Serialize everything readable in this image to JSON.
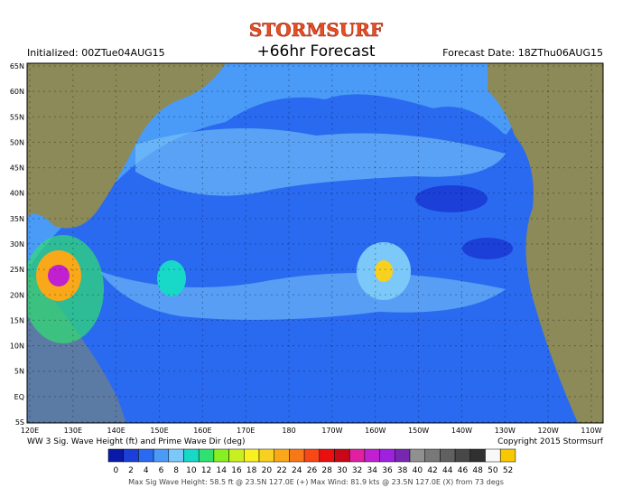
{
  "header": {
    "brand": "STORMSURF",
    "title": "+66hr Forecast",
    "initialized": "Initialized: 00ZTue04AUG15",
    "forecast_date": "Forecast Date: 18ZThu06AUG15"
  },
  "map": {
    "lat_labels": [
      "65N",
      "60N",
      "55N",
      "50N",
      "45N",
      "40N",
      "35N",
      "30N",
      "25N",
      "20N",
      "15N",
      "10N",
      "5N",
      "EQ",
      "5S"
    ],
    "lon_labels": [
      "120E",
      "130E",
      "140E",
      "150E",
      "160E",
      "170E",
      "180",
      "170W",
      "160W",
      "150W",
      "140W",
      "130W",
      "120W",
      "110W"
    ]
  },
  "caption": {
    "left": "WW 3 Sig. Wave Height (ft) and Prime Wave Dir (deg)",
    "right": "Copyright 2015 Stormsurf"
  },
  "scale": {
    "labels": [
      "0",
      "2",
      "4",
      "6",
      "8",
      "10",
      "12",
      "14",
      "16",
      "18",
      "20",
      "22",
      "24",
      "26",
      "28",
      "30",
      "32",
      "34",
      "36",
      "38",
      "40",
      "42",
      "44",
      "46",
      "48",
      "50",
      "52"
    ],
    "colors": [
      "#0a1aa8",
      "#1c3fd8",
      "#2a6af0",
      "#4a9af8",
      "#7cc8f8",
      "#18d8c8",
      "#30e070",
      "#88f020",
      "#c8f020",
      "#f8f020",
      "#f8d020",
      "#f8a818",
      "#f87818",
      "#f84818",
      "#e81010",
      "#c80818",
      "#e020a0",
      "#c020d0",
      "#a020e0",
      "#7828b0",
      "#909090",
      "#787878",
      "#606060",
      "#484848",
      "#303030",
      "#f8f8f8",
      "#f8c800"
    ]
  },
  "footer": "Max Sig Wave Height: 58.5 ft @ 23.5N 127.0E (+)   Max Wind: 81.9 kts @ 23.5N 127.0E (X) from 73  degs"
}
